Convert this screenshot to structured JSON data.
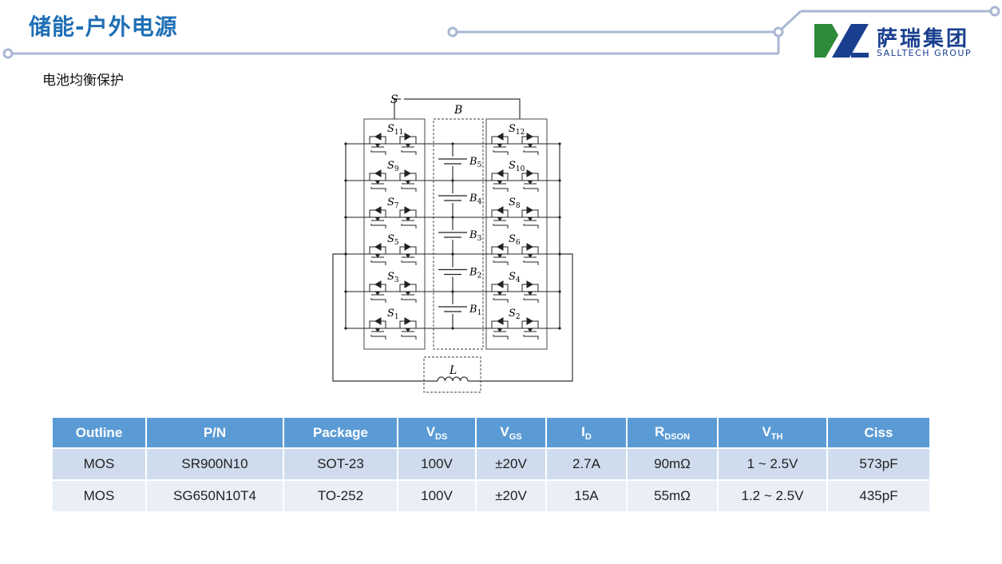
{
  "header": {
    "title": "储能-户外电源",
    "subtitle": "电池均衡保护"
  },
  "logo": {
    "cn": "萨瑞集团",
    "en": "SALLTECH GROUP",
    "colors": {
      "green": "#2e8b3a",
      "blue": "#1a3f8f"
    }
  },
  "accent_color": "#1f6fb5",
  "circuit": {
    "S": "S",
    "B": "B",
    "L": "L",
    "left_switches": [
      [
        "S",
        "11"
      ],
      [
        "S",
        "9"
      ],
      [
        "S",
        "7"
      ],
      [
        "S",
        "5"
      ],
      [
        "S",
        "3"
      ],
      [
        "S",
        "1"
      ]
    ],
    "right_switches": [
      [
        "S",
        "12"
      ],
      [
        "S",
        "10"
      ],
      [
        "S",
        "8"
      ],
      [
        "S",
        "6"
      ],
      [
        "S",
        "4"
      ],
      [
        "S",
        "2"
      ]
    ],
    "batteries": [
      [
        "B",
        "5"
      ],
      [
        "B",
        "4"
      ],
      [
        "B",
        "3"
      ],
      [
        "B",
        "2"
      ],
      [
        "B",
        "1"
      ]
    ]
  },
  "table": {
    "headers": [
      {
        "main": "Outline",
        "sub": ""
      },
      {
        "main": "P/N",
        "sub": ""
      },
      {
        "main": "Package",
        "sub": ""
      },
      {
        "main": "V",
        "sub": "DS"
      },
      {
        "main": "V",
        "sub": "GS"
      },
      {
        "main": "I",
        "sub": "D"
      },
      {
        "main": "R",
        "sub": "DSON"
      },
      {
        "main": "V",
        "sub": "TH"
      },
      {
        "main": "Ciss",
        "sub": ""
      }
    ],
    "rows": [
      [
        "MOS",
        "SR900N10",
        "SOT-23",
        "100V",
        "±20V",
        "2.7A",
        "90mΩ",
        "1 ~ 2.5V",
        "573pF"
      ],
      [
        "MOS",
        "SG650N10T4",
        "TO-252",
        "100V",
        "±20V",
        "15A",
        "55mΩ",
        "1.2 ~ 2.5V",
        "435pF"
      ]
    ],
    "header_color": "#5b9bd5",
    "row_colors": [
      "#cfdcee",
      "#e9eef7"
    ]
  }
}
